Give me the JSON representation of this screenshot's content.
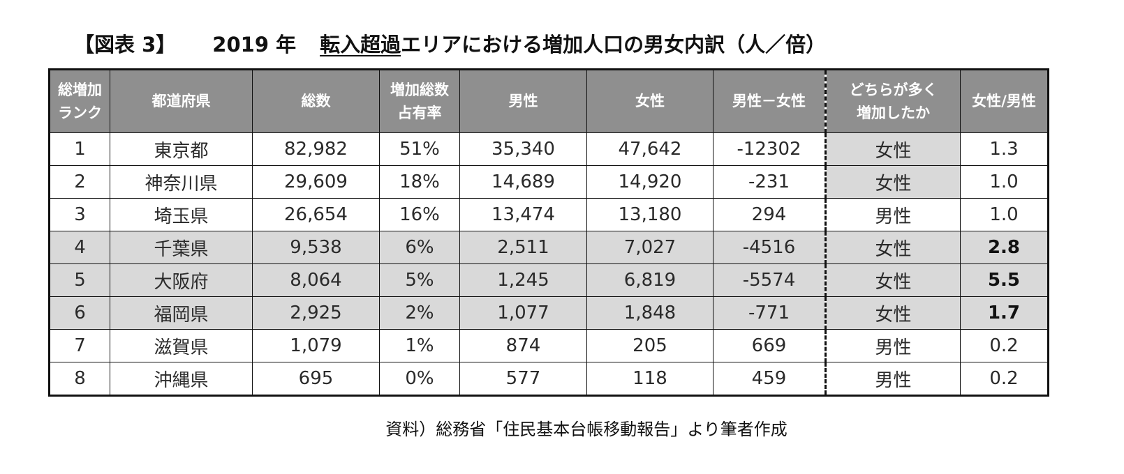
{
  "title": {
    "prefix": "【図表 3】",
    "year": "2019 年",
    "underlined": "転入超過",
    "rest": "エリアにおける増加人口の男女内訳（人／倍）"
  },
  "table": {
    "headers": {
      "rank_line1": "総増加",
      "rank_line2": "ランク",
      "prefecture": "都道府県",
      "total": "総数",
      "share_line1": "増加総数",
      "share_line2": "占有率",
      "male": "男性",
      "female": "女性",
      "diff": "男性－女性",
      "which_line1": "どちらが多く",
      "which_line2": "増加したか",
      "ratio": "女性/男性"
    },
    "rows": [
      {
        "rank": "1",
        "prefecture": "東京都",
        "total": "82,982",
        "share": "51%",
        "male": "35,340",
        "female": "47,642",
        "diff": "-12302",
        "which": "女性",
        "ratio": "1.3"
      },
      {
        "rank": "2",
        "prefecture": "神奈川県",
        "total": "29,609",
        "share": "18%",
        "male": "14,689",
        "female": "14,920",
        "diff": "-231",
        "which": "女性",
        "ratio": "1.0"
      },
      {
        "rank": "3",
        "prefecture": "埼玉県",
        "total": "26,654",
        "share": "16%",
        "male": "13,474",
        "female": "13,180",
        "diff": "294",
        "which": "男性",
        "ratio": "1.0"
      },
      {
        "rank": "4",
        "prefecture": "千葉県",
        "total": "9,538",
        "share": "6%",
        "male": "2,511",
        "female": "7,027",
        "diff": "-4516",
        "which": "女性",
        "ratio": "2.8"
      },
      {
        "rank": "5",
        "prefecture": "大阪府",
        "total": "8,064",
        "share": "5%",
        "male": "1,245",
        "female": "6,819",
        "diff": "-5574",
        "which": "女性",
        "ratio": "5.5"
      },
      {
        "rank": "6",
        "prefecture": "福岡県",
        "total": "2,925",
        "share": "2%",
        "male": "1,077",
        "female": "1,848",
        "diff": "-771",
        "which": "女性",
        "ratio": "1.7"
      },
      {
        "rank": "7",
        "prefecture": "滋賀県",
        "total": "1,079",
        "share": "1%",
        "male": "874",
        "female": "205",
        "diff": "669",
        "which": "男性",
        "ratio": "0.2"
      },
      {
        "rank": "8",
        "prefecture": "沖縄県",
        "total": "695",
        "share": "0%",
        "male": "577",
        "female": "118",
        "diff": "459",
        "which": "男性",
        "ratio": "0.2"
      }
    ]
  },
  "source": "資料）総務省「住民基本台帳移動報告」より筆者作成",
  "colors": {
    "header_bg": "#8f8f8f",
    "header_text": "#ffffff",
    "highlight_bg": "#d9d9d9",
    "border": "#111111"
  }
}
